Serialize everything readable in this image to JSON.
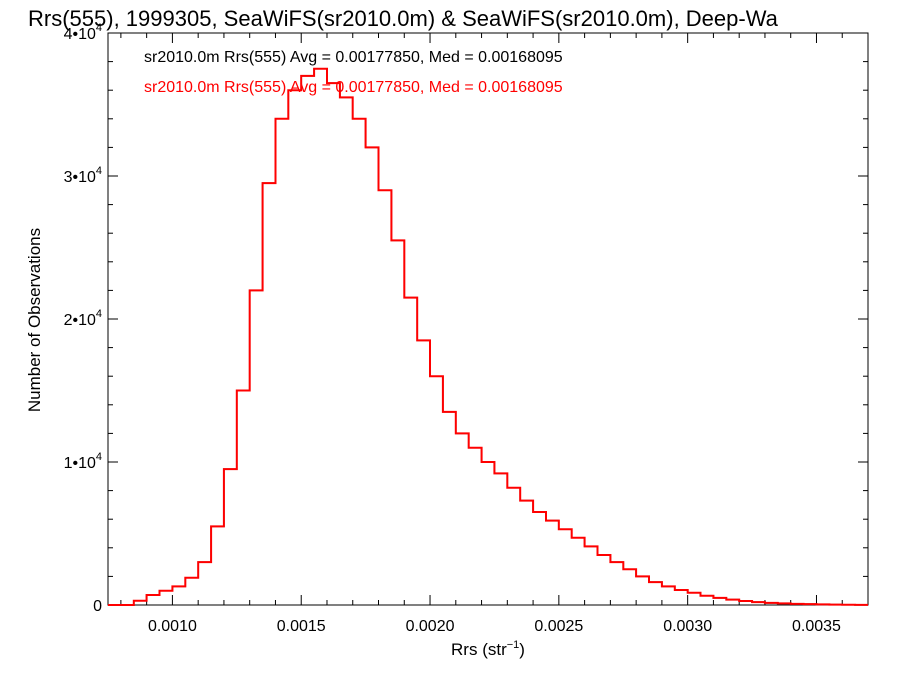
{
  "chart_data": {
    "type": "line",
    "title": "Rrs(555), 1999305, SeaWiFS(sr2010.0m) & SeaWiFS(sr2010.0m), Deep-Wa",
    "xlabel_main": "Rrs (str",
    "xlabel_sup": "−1",
    "xlabel_end": ")",
    "ylabel": "Number of Observations",
    "xlim": [
      0.00075,
      0.0037
    ],
    "ylim": [
      0,
      40000
    ],
    "x_ticks": [
      {
        "value": 0.001,
        "label": "0.0010"
      },
      {
        "value": 0.0015,
        "label": "0.0015"
      },
      {
        "value": 0.002,
        "label": "0.0020"
      },
      {
        "value": 0.0025,
        "label": "0.0025"
      },
      {
        "value": 0.003,
        "label": "0.0030"
      },
      {
        "value": 0.0035,
        "label": "0.0035"
      }
    ],
    "y_ticks": [
      {
        "value": 0,
        "mant": "0",
        "exp": ""
      },
      {
        "value": 10000,
        "mant": "1•10",
        "exp": "4"
      },
      {
        "value": 20000,
        "mant": "2•10",
        "exp": "4"
      },
      {
        "value": 30000,
        "mant": "3•10",
        "exp": "4"
      },
      {
        "value": 40000,
        "mant": "4•10",
        "exp": "4"
      }
    ],
    "legend_entries": [
      {
        "text": "sr2010.0m Rrs(555) Avg = 0.00177850, Med = 0.00168095",
        "color": "#000000"
      },
      {
        "text": "sr2010.0m Rrs(555) Avg = 0.00177850, Med = 0.00168095",
        "color": "#ff0000"
      }
    ],
    "legend_placement": "top-left",
    "grid": false,
    "series": [
      {
        "color": "#000000",
        "x": [
          0.00075,
          0.0008,
          0.00085,
          0.0009,
          0.00095,
          0.001,
          0.00105,
          0.0011,
          0.00115,
          0.0012,
          0.00125,
          0.0013,
          0.00135,
          0.0014,
          0.00145,
          0.0015,
          0.00155,
          0.0016,
          0.00165,
          0.0017,
          0.00175,
          0.0018,
          0.00185,
          0.0019,
          0.00195,
          0.002,
          0.00205,
          0.0021,
          0.00215,
          0.0022,
          0.00225,
          0.0023,
          0.00235,
          0.0024,
          0.00245,
          0.0025,
          0.00255,
          0.0026,
          0.00265,
          0.0027,
          0.00275,
          0.0028,
          0.00285,
          0.0029,
          0.00295,
          0.003,
          0.00305,
          0.0031,
          0.00315,
          0.0032,
          0.00325,
          0.0033,
          0.00335,
          0.0034,
          0.00345,
          0.0035,
          0.00355,
          0.0036,
          0.00365,
          0.0037
        ],
        "y": [
          0,
          0,
          300,
          700,
          1000,
          1300,
          1900,
          3000,
          5500,
          9500,
          15000,
          22000,
          29500,
          34000,
          36000,
          37000,
          37500,
          36500,
          35500,
          34000,
          32000,
          29000,
          25500,
          21500,
          18500,
          16000,
          13500,
          12000,
          11000,
          10000,
          9200,
          8200,
          7300,
          6500,
          5900,
          5300,
          4700,
          4100,
          3500,
          3000,
          2500,
          2000,
          1600,
          1300,
          1050,
          850,
          650,
          500,
          380,
          280,
          200,
          150,
          110,
          80,
          60,
          40,
          30,
          20,
          10,
          5
        ]
      },
      {
        "color": "#ff0000",
        "x": [
          0.00075,
          0.0008,
          0.00085,
          0.0009,
          0.00095,
          0.001,
          0.00105,
          0.0011,
          0.00115,
          0.0012,
          0.00125,
          0.0013,
          0.00135,
          0.0014,
          0.00145,
          0.0015,
          0.00155,
          0.0016,
          0.00165,
          0.0017,
          0.00175,
          0.0018,
          0.00185,
          0.0019,
          0.00195,
          0.002,
          0.00205,
          0.0021,
          0.00215,
          0.0022,
          0.00225,
          0.0023,
          0.00235,
          0.0024,
          0.00245,
          0.0025,
          0.00255,
          0.0026,
          0.00265,
          0.0027,
          0.00275,
          0.0028,
          0.00285,
          0.0029,
          0.00295,
          0.003,
          0.00305,
          0.0031,
          0.00315,
          0.0032,
          0.00325,
          0.0033,
          0.00335,
          0.0034,
          0.00345,
          0.0035,
          0.00355,
          0.0036,
          0.00365,
          0.0037
        ],
        "y": [
          0,
          0,
          300,
          700,
          1000,
          1300,
          1900,
          3000,
          5500,
          9500,
          15000,
          22000,
          29500,
          34000,
          36000,
          37000,
          37500,
          36500,
          35500,
          34000,
          32000,
          29000,
          25500,
          21500,
          18500,
          16000,
          13500,
          12000,
          11000,
          10000,
          9200,
          8200,
          7300,
          6500,
          5900,
          5300,
          4700,
          4100,
          3500,
          3000,
          2500,
          2000,
          1600,
          1300,
          1050,
          850,
          650,
          500,
          380,
          280,
          200,
          150,
          110,
          80,
          60,
          40,
          30,
          20,
          10,
          5
        ]
      }
    ]
  }
}
